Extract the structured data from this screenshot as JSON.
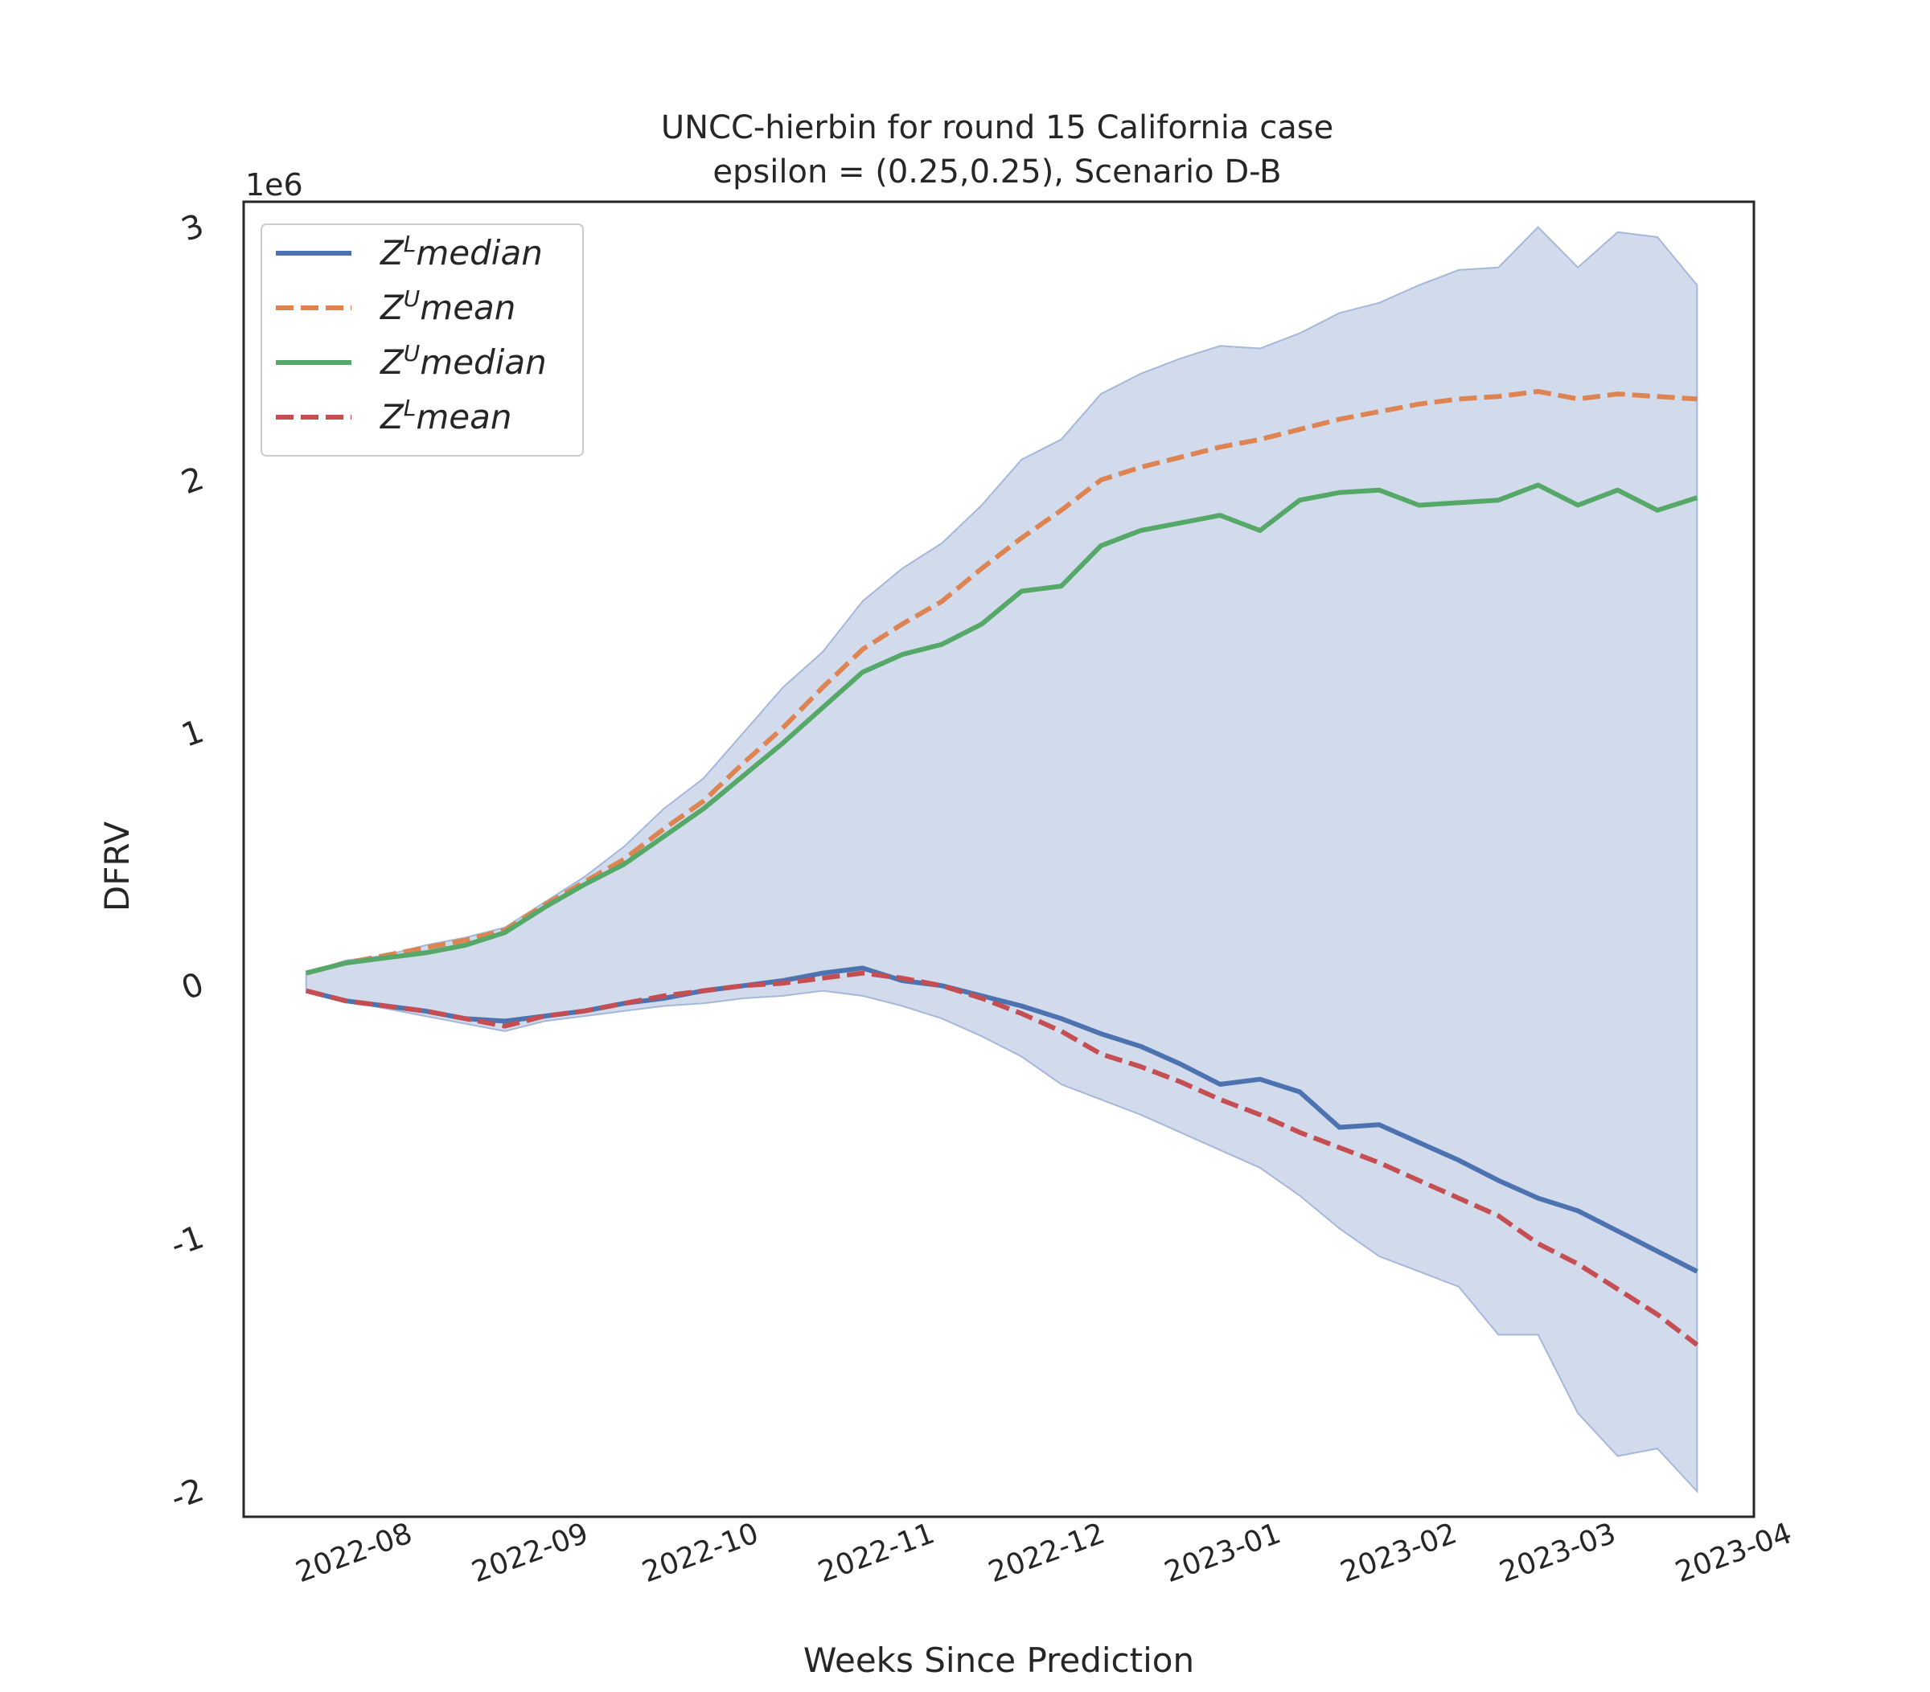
{
  "chart_data": {
    "type": "line",
    "title_line1": "UNCC-hierbin for round 15 California  case",
    "title_line2": "epsilon = (0.25,0.25), Scenario D-B",
    "xlabel": "Weeks Since Prediction",
    "ylabel": "DFRV",
    "y_offset_label": "1e6",
    "x_start": "2022-07-23",
    "xlim": [
      "2022-07-12",
      "2023-04-04"
    ],
    "ylim": [
      -2.1,
      3.1
    ],
    "xtick_labels": [
      "2022-08",
      "2022-09",
      "2022-10",
      "2022-11",
      "2022-12",
      "2023-01",
      "2023-02",
      "2023-03",
      "2023-04"
    ],
    "xtick_dates": [
      "2022-08-01",
      "2022-09-01",
      "2022-10-01",
      "2022-11-01",
      "2022-12-01",
      "2023-01-01",
      "2023-02-01",
      "2023-03-01",
      "2023-04-01"
    ],
    "ytick_labels": [
      "-2",
      "-1",
      "0",
      "1",
      "2",
      "3"
    ],
    "ytick_values": [
      -2,
      -1,
      0,
      1,
      2,
      3
    ],
    "grid": false,
    "legend_position": "top-left",
    "colors": {
      "band": "#a5b8d9",
      "band_edge": "#a5b8d9",
      "zl_median": "#4c72b0",
      "zu_mean": "#dd8452",
      "zu_median": "#55a868",
      "zl_mean": "#c44e52"
    },
    "band": {
      "upper": [
        0.05,
        0.1,
        0.12,
        0.16,
        0.19,
        0.23,
        0.33,
        0.43,
        0.55,
        0.7,
        0.82,
        1.0,
        1.18,
        1.32,
        1.52,
        1.65,
        1.75,
        1.9,
        2.08,
        2.16,
        2.34,
        2.42,
        2.48,
        2.53,
        2.52,
        2.58,
        2.66,
        2.7,
        2.77,
        2.83,
        2.84,
        3.0,
        2.84,
        2.98,
        2.96,
        2.77
      ],
      "lower": [
        -0.02,
        -0.06,
        -0.09,
        -0.12,
        -0.15,
        -0.18,
        -0.14,
        -0.12,
        -0.1,
        -0.08,
        -0.07,
        -0.05,
        -0.04,
        -0.02,
        -0.04,
        -0.08,
        -0.13,
        -0.2,
        -0.28,
        -0.39,
        -0.45,
        -0.51,
        -0.58,
        -0.65,
        -0.72,
        -0.83,
        -0.96,
        -1.07,
        -1.13,
        -1.19,
        -1.38,
        -1.38,
        -1.69,
        -1.86,
        -1.83,
        -2.0
      ]
    },
    "series": [
      {
        "name": "Z^L median",
        "values": [
          -0.02,
          -0.06,
          -0.08,
          -0.1,
          -0.13,
          -0.14,
          -0.12,
          -0.1,
          -0.07,
          -0.05,
          -0.02,
          0.0,
          0.02,
          0.05,
          0.07,
          0.02,
          0.0,
          -0.04,
          -0.08,
          -0.13,
          -0.19,
          -0.24,
          -0.31,
          -0.39,
          -0.37,
          -0.42,
          -0.56,
          -0.55,
          -0.62,
          -0.69,
          -0.77,
          -0.84,
          -0.89,
          -0.97,
          -1.05,
          -1.13
        ]
      },
      {
        "name": "Z^U mean",
        "values": [
          0.05,
          0.09,
          0.12,
          0.15,
          0.18,
          0.22,
          0.32,
          0.41,
          0.5,
          0.62,
          0.73,
          0.88,
          1.02,
          1.18,
          1.33,
          1.43,
          1.52,
          1.65,
          1.77,
          1.88,
          2.0,
          2.05,
          2.09,
          2.13,
          2.16,
          2.2,
          2.24,
          2.27,
          2.3,
          2.32,
          2.33,
          2.35,
          2.32,
          2.34,
          2.33,
          2.32
        ]
      },
      {
        "name": "Z^U median",
        "values": [
          0.05,
          0.09,
          0.11,
          0.13,
          0.16,
          0.21,
          0.31,
          0.4,
          0.48,
          0.59,
          0.7,
          0.83,
          0.96,
          1.1,
          1.24,
          1.31,
          1.35,
          1.43,
          1.56,
          1.58,
          1.74,
          1.8,
          1.83,
          1.86,
          1.8,
          1.92,
          1.95,
          1.96,
          1.9,
          1.91,
          1.92,
          1.98,
          1.9,
          1.96,
          1.88,
          1.93
        ]
      },
      {
        "name": "Z^L mean",
        "values": [
          -0.02,
          -0.06,
          -0.08,
          -0.1,
          -0.13,
          -0.16,
          -0.12,
          -0.1,
          -0.07,
          -0.04,
          -0.02,
          0.0,
          0.01,
          0.03,
          0.05,
          0.03,
          0.0,
          -0.05,
          -0.11,
          -0.18,
          -0.27,
          -0.32,
          -0.38,
          -0.45,
          -0.51,
          -0.58,
          -0.64,
          -0.7,
          -0.77,
          -0.84,
          -0.91,
          -1.02,
          -1.1,
          -1.2,
          -1.3,
          -1.42
        ]
      }
    ],
    "legend": [
      {
        "base": "Z",
        "sup": "L",
        "rest": "median",
        "style": "solid",
        "color_key": "zl_median"
      },
      {
        "base": "Z",
        "sup": "U",
        "rest": "mean",
        "style": "dashed",
        "color_key": "zu_mean"
      },
      {
        "base": "Z",
        "sup": "U",
        "rest": "median",
        "style": "solid",
        "color_key": "zu_median"
      },
      {
        "base": "Z",
        "sup": "L",
        "rest": "mean",
        "style": "dashed",
        "color_key": "zl_mean"
      }
    ]
  }
}
